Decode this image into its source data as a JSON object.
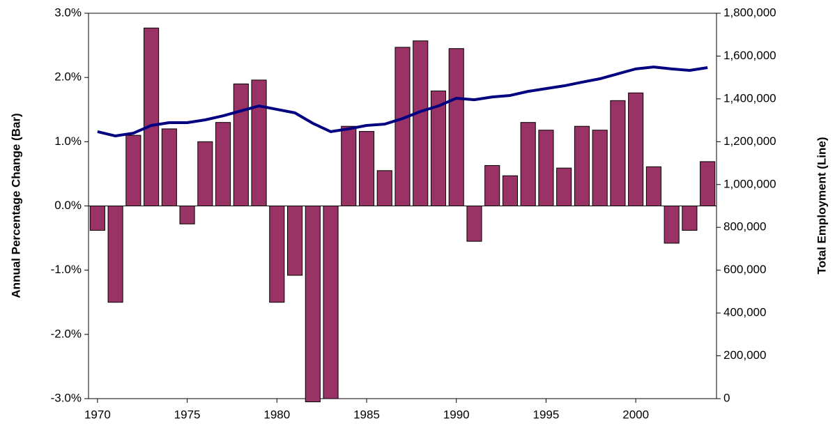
{
  "chart_data": {
    "type": "bar-line",
    "x": [
      1970,
      1971,
      1972,
      1973,
      1974,
      1975,
      1976,
      1977,
      1978,
      1979,
      1980,
      1981,
      1982,
      1983,
      1984,
      1985,
      1986,
      1987,
      1988,
      1989,
      1990,
      1991,
      1992,
      1993,
      1994,
      1995,
      1996,
      1997,
      1998,
      1999,
      2000,
      2001,
      2002,
      2003,
      2004
    ],
    "xlim": [
      1969.5,
      2004.5
    ],
    "xticks": [
      1970,
      1975,
      1980,
      1985,
      1990,
      1995,
      2000
    ],
    "y_label": "Annual Percentage Change (Bar)",
    "y2_label": "Total Employment (Line)",
    "ylim": [
      -3,
      3
    ],
    "yticks": [
      {
        "value": -3,
        "label": "-3.0%"
      },
      {
        "value": -2,
        "label": "-2.0%"
      },
      {
        "value": -1,
        "label": "-1.0%"
      },
      {
        "value": 0,
        "label": "0.0%"
      },
      {
        "value": 1,
        "label": "1.0%"
      },
      {
        "value": 2,
        "label": "2.0%"
      },
      {
        "value": 3,
        "label": "3.0%"
      }
    ],
    "y2lim": [
      0,
      1800000
    ],
    "y2ticks": [
      0,
      {
        "value": 200000,
        "label": "200,000"
      },
      {
        "value": 400000,
        "label": "400,000"
      },
      {
        "value": 600000,
        "label": "600,000"
      },
      {
        "value": 800000,
        "label": "800,000"
      },
      {
        "value": 1000000,
        "label": "1,000,000"
      },
      {
        "value": 1200000,
        "label": "1,200,000"
      },
      {
        "value": 1400000,
        "label": "1,400,000"
      },
      {
        "value": 1600000,
        "label": "1,600,000"
      },
      {
        "value": 1800000,
        "label": "1,800,000"
      }
    ],
    "series": [
      {
        "type": "bar",
        "axis": "y",
        "color": "#993366",
        "values": [
          -0.38,
          -1.5,
          1.1,
          2.77,
          1.2,
          -0.28,
          1.0,
          1.3,
          1.9,
          1.96,
          -1.5,
          -1.08,
          -3.05,
          -3.0,
          1.24,
          1.16,
          0.55,
          2.47,
          2.57,
          1.79,
          2.45,
          -0.55,
          0.63,
          0.47,
          1.3,
          1.18,
          0.59,
          1.24,
          1.18,
          1.64,
          1.76,
          0.61,
          -0.58,
          -0.38,
          0.69
        ]
      },
      {
        "type": "line",
        "axis": "y2",
        "color": "#000080",
        "values": [
          1247000,
          1227000,
          1240000,
          1276000,
          1289000,
          1289000,
          1302000,
          1321000,
          1344000,
          1367000,
          1351000,
          1335000,
          1286000,
          1247000,
          1260000,
          1276000,
          1282000,
          1308000,
          1341000,
          1367000,
          1403000,
          1396000,
          1409000,
          1416000,
          1435000,
          1448000,
          1461000,
          1478000,
          1494000,
          1517000,
          1540000,
          1549000,
          1540000,
          1533000,
          1546000
        ]
      }
    ]
  }
}
